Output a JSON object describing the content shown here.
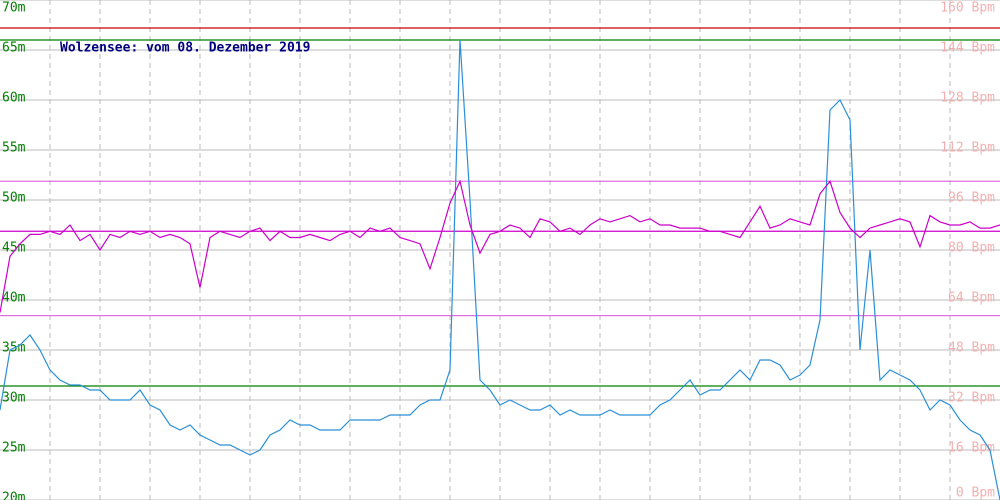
{
  "chart_data": {
    "type": "line",
    "title": "Wolzensee: vom 08. Dezember 2019",
    "ylim": [
      20,
      70
    ],
    "yticks": [
      {
        "value": 20,
        "label": "20m"
      },
      {
        "value": 25,
        "label": "25m"
      },
      {
        "value": 30,
        "label": "30m"
      },
      {
        "value": 35,
        "label": "35m"
      },
      {
        "value": 40,
        "label": "40m"
      },
      {
        "value": 45,
        "label": "45m"
      },
      {
        "value": 50,
        "label": "50m"
      },
      {
        "value": 55,
        "label": "55m"
      },
      {
        "value": 60,
        "label": "60m"
      },
      {
        "value": 65,
        "label": "65m"
      },
      {
        "value": 70,
        "label": "70m"
      }
    ],
    "y2lim": [
      0,
      160
    ],
    "y2ticks": [
      {
        "value": 0,
        "label": "0 Bpm"
      },
      {
        "value": 16,
        "label": "16 Bpm"
      },
      {
        "value": 32,
        "label": "32 Bpm"
      },
      {
        "value": 48,
        "label": "48 Bpm"
      },
      {
        "value": 64,
        "label": "64 Bpm"
      },
      {
        "value": 80,
        "label": "80 Bpm"
      },
      {
        "value": 96,
        "label": "96 Bpm"
      },
      {
        "value": 112,
        "label": "112 Bpm"
      },
      {
        "value": 128,
        "label": "128 Bpm"
      },
      {
        "value": 144,
        "label": "144 Bpm"
      },
      {
        "value": 160,
        "label": "160 Bpm"
      }
    ],
    "grid": true,
    "hlines": [
      {
        "value": 67.2,
        "color": "#cc0000",
        "axis": "y"
      },
      {
        "value": 66,
        "color": "#008000",
        "axis": "y"
      },
      {
        "value": 31.4,
        "color": "#008000",
        "axis": "y"
      },
      {
        "value": 102,
        "color": "#e070e0",
        "axis": "y2"
      },
      {
        "value": 86,
        "color": "#cc00cc",
        "axis": "y2"
      },
      {
        "value": 59,
        "color": "#e070e0",
        "axis": "y2"
      }
    ],
    "series": [
      {
        "color": "#2a8fd8",
        "axis": "y",
        "values": [
          29,
          35,
          35.5,
          36.5,
          35,
          33,
          32,
          31.5,
          31.5,
          31,
          31,
          30,
          30,
          30,
          31,
          29.5,
          29,
          27.5,
          27,
          27.5,
          26.5,
          26,
          25.5,
          25.5,
          25,
          24.5,
          25,
          26.5,
          27,
          28,
          27.5,
          27.5,
          27,
          27,
          27,
          28,
          28,
          28,
          28,
          28.5,
          28.5,
          28.5,
          29.5,
          30,
          30,
          33,
          66,
          50,
          32,
          31,
          29.5,
          30,
          29.5,
          29,
          29,
          29.5,
          28.5,
          29,
          28.5,
          28.5,
          28.5,
          29,
          28.5,
          28.5,
          28.5,
          28.5,
          29.5,
          30,
          31,
          32,
          30.5,
          31,
          31,
          32,
          33,
          32,
          34,
          34,
          33.5,
          32,
          32.5,
          33.5,
          38,
          59,
          60,
          58,
          35,
          45,
          32,
          33,
          32.5,
          32,
          31,
          29,
          30,
          29.5,
          28,
          27,
          26.5,
          25,
          20
        ]
      },
      {
        "color": "#cc00cc",
        "axis": "y2",
        "values": [
          60,
          78,
          82,
          85,
          85,
          86,
          85,
          88,
          83,
          85,
          80,
          85,
          84,
          86,
          85,
          86,
          84,
          85,
          84,
          82,
          68,
          84,
          86,
          85,
          84,
          86,
          87,
          83,
          86,
          84,
          84,
          85,
          84,
          83,
          85,
          86,
          84,
          87,
          86,
          87,
          84,
          83,
          82,
          74,
          84,
          95,
          102,
          88,
          79,
          85,
          86,
          88,
          87,
          84,
          90,
          89,
          86,
          87,
          85,
          88,
          90,
          89,
          90,
          91,
          89,
          90,
          88,
          88,
          87,
          87,
          87,
          86,
          86,
          85,
          84,
          89,
          94,
          87,
          88,
          90,
          89,
          88,
          98,
          102,
          92,
          87,
          84,
          87,
          88,
          89,
          90,
          89,
          81,
          91,
          89,
          88,
          88,
          89,
          87,
          87,
          88
        ]
      }
    ]
  }
}
